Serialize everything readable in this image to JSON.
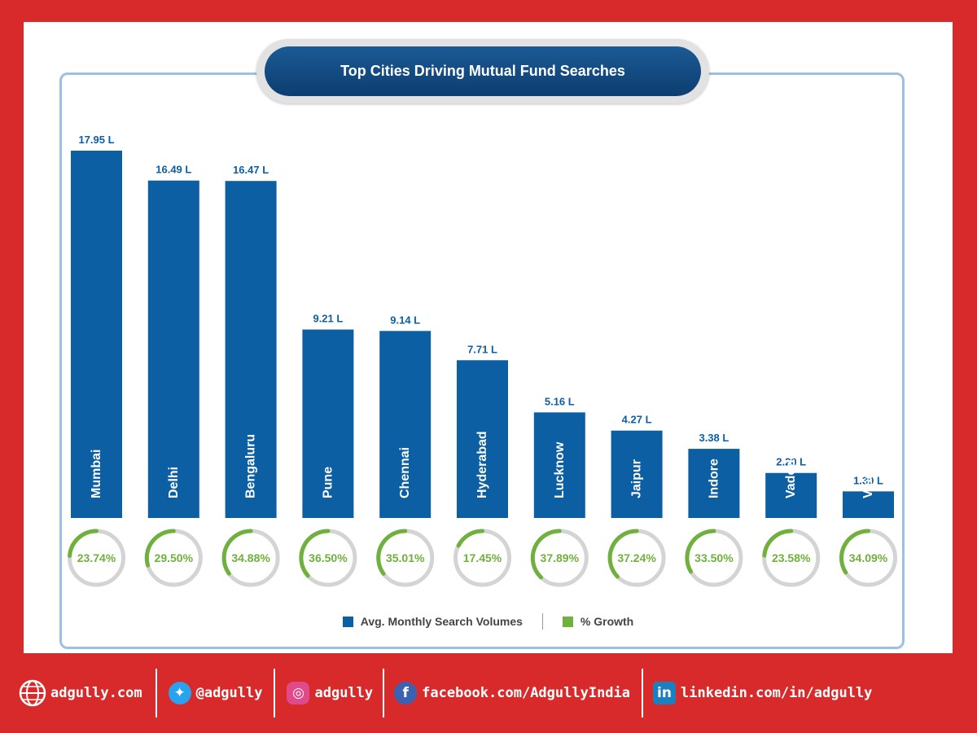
{
  "title": "Top Cities Driving Mutual Fund Searches",
  "colors": {
    "bar": "#0d5fa4",
    "growth": "#6fb13c",
    "ring": "#d4d4d4",
    "label": "#0d5fa4",
    "background": "#d82a2a"
  },
  "legend": {
    "series1": "Avg. Monthly Search Volumes",
    "series2": "% Growth"
  },
  "chart_data": {
    "type": "bar",
    "categories": [
      "Mumbai",
      "Delhi",
      "Bengaluru",
      "Pune",
      "Chennai",
      "Hyderabad",
      "Lucknow",
      "Jaipur",
      "Indore",
      "Vadodara",
      "Visakhapatnam"
    ],
    "series": [
      {
        "name": "Avg. Monthly Search Volumes",
        "values": [
          17.95,
          16.49,
          16.47,
          9.21,
          9.14,
          7.71,
          5.16,
          4.27,
          3.38,
          2.2,
          1.3
        ],
        "labels": [
          "17.95 L",
          "16.49 L",
          "16.47 L",
          "9.21 L",
          "9.14 L",
          "7.71 L",
          "5.16 L",
          "4.27 L",
          "3.38 L",
          "2.20 L",
          "1.30 L"
        ]
      },
      {
        "name": "% Growth",
        "values": [
          23.74,
          29.5,
          34.88,
          36.5,
          35.01,
          17.45,
          37.89,
          37.24,
          33.5,
          23.58,
          34.09
        ],
        "labels": [
          "23.74%",
          "29.50%",
          "34.88%",
          "36.50%",
          "35.01%",
          "17.45%",
          "37.89%",
          "37.24%",
          "33.50%",
          "23.58%",
          "34.09%"
        ]
      }
    ],
    "unit": "L",
    "ylim": [
      0,
      17.95
    ],
    "grid": false,
    "legend_position": "bottom"
  },
  "footer": {
    "website": "adgully.com",
    "twitter": "@adgully",
    "instagram": "adgully",
    "facebook": "facebook.com/AdgullyIndia",
    "linkedin": "linkedin.com/in/adgully",
    "icons": [
      "globe-icon",
      "twitter-icon",
      "instagram-icon",
      "facebook-icon",
      "linkedin-icon"
    ]
  }
}
